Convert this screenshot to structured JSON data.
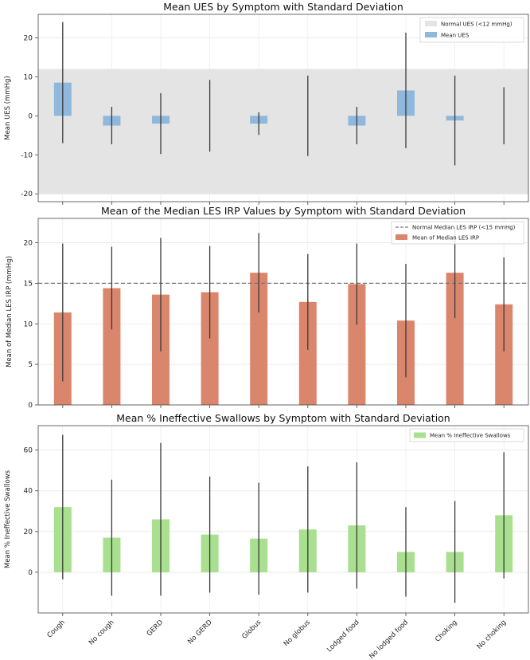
{
  "chart_data": [
    {
      "type": "bar",
      "title": "Mean UES by Symptom with Standard Deviation",
      "xlabel": "",
      "ylabel": "Mean UES (mmHg)",
      "ylim": [
        -22,
        26
      ],
      "yticks": [
        -20,
        -10,
        0,
        10,
        20
      ],
      "categories": [
        "Cough",
        "No cough",
        "GERD",
        "No GERD",
        "Globus",
        "No globus",
        "Lodged food",
        "No lodged food",
        "Choking",
        "No choking"
      ],
      "values": [
        8.5,
        -2.5,
        -2.0,
        0.0,
        -2.0,
        0.0,
        -2.5,
        6.5,
        -1.2,
        0.0
      ],
      "std": [
        15.5,
        4.8,
        7.8,
        9.2,
        2.9,
        10.3,
        4.8,
        14.8,
        11.5,
        7.3
      ],
      "band": {
        "from": -20,
        "to": 12,
        "label": "Normal UES (<12 mmHg)"
      },
      "legend": [
        "Normal UES (<12 mmHg)",
        "Mean UES"
      ],
      "legend_position": "upper right",
      "color": "#8fb8dc",
      "grid": true
    },
    {
      "type": "bar",
      "title": "Mean of the Median LES IRP Values by Symptom with Standard Deviation",
      "xlabel": "",
      "ylabel": "Mean of Median LES IRP (mmHg)",
      "ylim": [
        0,
        23
      ],
      "yticks": [
        0,
        5,
        10,
        15,
        20
      ],
      "categories": [
        "Cough",
        "No cough",
        "GERD",
        "No GERD",
        "Globus",
        "No globus",
        "Lodged food",
        "No lodged food",
        "Choking",
        "No choking"
      ],
      "values": [
        11.4,
        14.4,
        13.6,
        13.9,
        16.3,
        12.7,
        14.9,
        10.4,
        16.3,
        12.4
      ],
      "std": [
        8.5,
        5.1,
        7.0,
        5.7,
        4.9,
        5.9,
        5.0,
        7.0,
        5.6,
        5.8
      ],
      "reference_line": {
        "y": 15,
        "label": "Normal Median LES IRP (<15 mmHg)"
      },
      "legend": [
        "Normal Median LES IRP (<15 mmHg)",
        "Mean of Median LES IRP"
      ],
      "legend_position": "upper right",
      "color": "#d9866d",
      "grid": true
    },
    {
      "type": "bar",
      "title": "Mean % Ineffective Swallows by Symptom with Standard Deviation",
      "xlabel": "",
      "ylabel": "Mean % Ineffective Swallows",
      "ylim": [
        -20,
        72
      ],
      "yticks": [
        0,
        20,
        40,
        60
      ],
      "categories": [
        "Cough",
        "No cough",
        "GERD",
        "No GERD",
        "Globus",
        "No globus",
        "Lodged food",
        "No lodged food",
        "Choking",
        "No choking"
      ],
      "values": [
        32,
        17,
        26,
        18.5,
        16.5,
        21,
        23,
        10,
        10,
        28
      ],
      "std": [
        35.5,
        28.5,
        37.5,
        28.5,
        27.5,
        31,
        31,
        22,
        25,
        31
      ],
      "legend": [
        "Mean % Ineffective Swallows"
      ],
      "legend_position": "upper right",
      "color": "#a8e08f",
      "grid": true
    }
  ]
}
